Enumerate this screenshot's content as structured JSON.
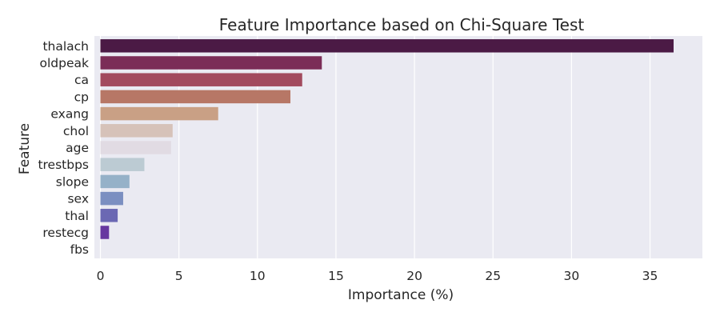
{
  "chart_data": {
    "type": "bar",
    "orientation": "horizontal",
    "title": "Feature Importance based on Chi-Square Test",
    "xlabel": "Importance (%)",
    "ylabel": "Feature",
    "categories": [
      "thalach",
      "oldpeak",
      "ca",
      "cp",
      "exang",
      "chol",
      "age",
      "trestbps",
      "slope",
      "sex",
      "thal",
      "restecg",
      "fbs"
    ],
    "values": [
      36.5,
      14.1,
      12.85,
      12.1,
      7.5,
      4.6,
      4.5,
      2.8,
      1.85,
      1.45,
      1.1,
      0.55,
      0.0
    ],
    "xlim": [
      0,
      38.3
    ],
    "xticks": [
      0,
      5,
      10,
      15,
      20,
      25,
      30,
      35
    ],
    "grid": true,
    "legend": "none",
    "colors": [
      "#4b1a45",
      "#7b2d57",
      "#a24a5e",
      "#b77766",
      "#c9a085",
      "#d6c2b9",
      "#e1dbe3",
      "#bccbd3",
      "#95b1c8",
      "#7b8fc1",
      "#6b68b3",
      "#6738a0",
      "#4a1f7a"
    ],
    "background_color": "#eaeaf2",
    "grid_color": "#ffffff"
  }
}
